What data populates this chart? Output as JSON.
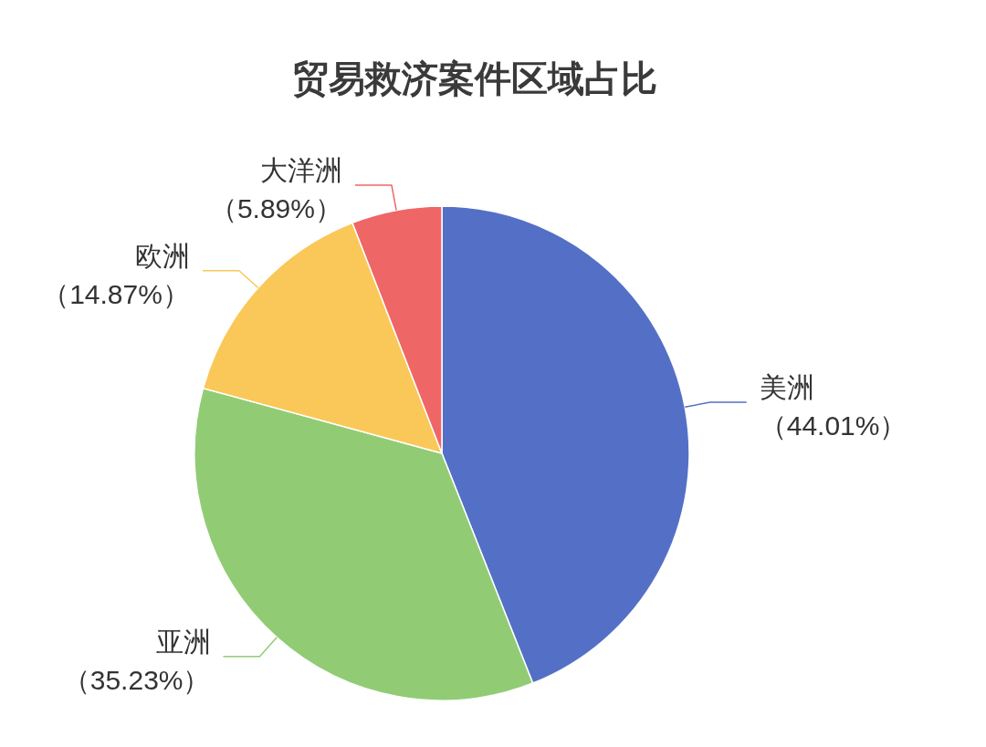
{
  "chart_data": {
    "type": "pie",
    "title": "贸易救济案件区域占比",
    "categories": [
      "美洲",
      "亚洲",
      "欧洲",
      "大洋洲"
    ],
    "values": [
      44.01,
      35.23,
      14.87,
      5.89
    ],
    "colors": [
      "#5470c6",
      "#91cc75",
      "#fac858",
      "#ee6666"
    ],
    "value_labels": [
      "（44.01%）",
      "（35.23%）",
      "（14.87%）",
      "（5.89%）"
    ]
  }
}
